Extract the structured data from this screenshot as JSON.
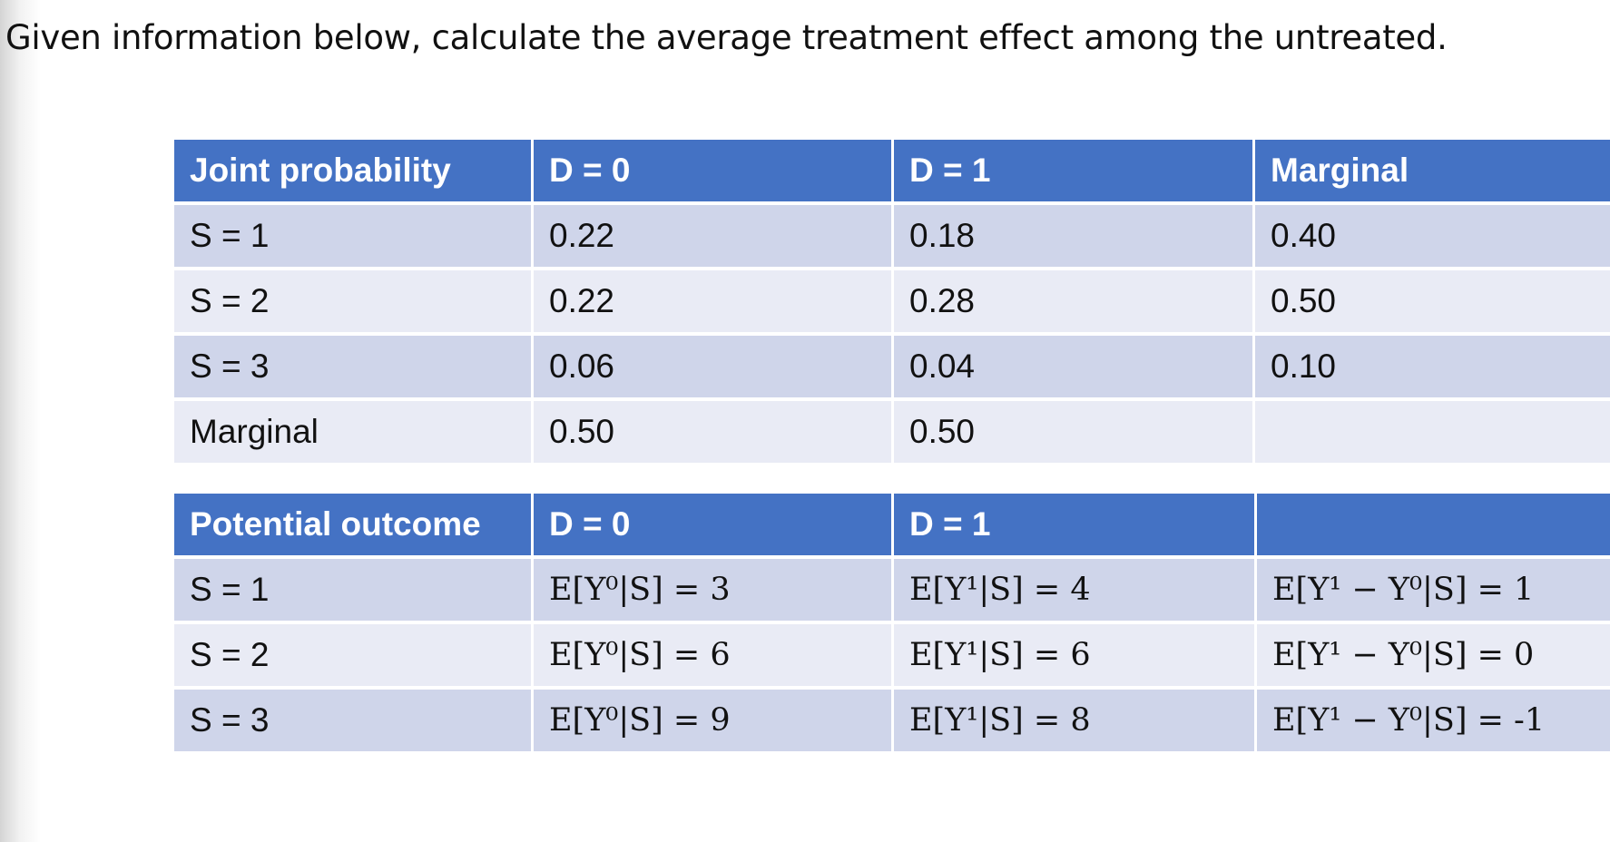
{
  "title": "Given information below, calculate the average treatment effect among the untreated.",
  "tables": [
    {
      "header": [
        "Joint probability",
        "D = 0",
        "D = 1",
        "Marginal"
      ],
      "rows": [
        [
          "S = 1",
          "0.22",
          "0.18",
          "0.40"
        ],
        [
          "S = 2",
          "0.22",
          "0.28",
          "0.50"
        ],
        [
          "S = 3",
          "0.06",
          "0.04",
          "0.10"
        ],
        [
          "Marginal",
          "0.50",
          "0.50"
        ]
      ]
    },
    {
      "header": [
        "Potential outcome",
        "D = 0",
        "D = 1"
      ],
      "rows": [
        [
          "S = 1",
          "E[Y⁰|S] = 3",
          "E[Y¹|S] = 4",
          "E[Y¹ − Y⁰|S] = 1"
        ],
        [
          "S = 2",
          "E[Y⁰|S] = 6",
          "E[Y¹|S] = 6",
          "E[Y¹ − Y⁰|S] = 0"
        ],
        [
          "S = 3",
          "E[Y⁰|S] = 9",
          "E[Y¹|S] = 8",
          "E[Y¹ − Y⁰|S] = -1"
        ]
      ]
    }
  ]
}
